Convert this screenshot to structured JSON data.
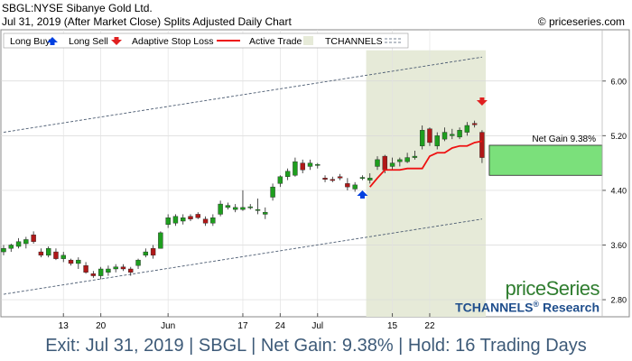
{
  "header": {
    "title": "SBGL:NYSE Sibanye Gold Ltd.",
    "subtitle": "Jul 31, 2019 (After Market Close)  Splits Adjusted Daily Chart",
    "copyright": "© priceseries.com"
  },
  "legend": {
    "long_buy": "Long Buy",
    "long_sell": "Long Sell",
    "stop_loss": "Adaptive Stop Loss",
    "active_trade": "Active Trade",
    "tchannels": "TCHANNELS"
  },
  "annotation": {
    "net_gain_label": "Net Gain 9.38%"
  },
  "brand": {
    "logo": "priceSeries",
    "research_name": "TCHANNELS",
    "research_mark": "®",
    "research_suffix": " Research"
  },
  "footer": {
    "summary": "Exit: Jul 31, 2019 | SBGL | Net Gain: 9.38% | Hold: 16 Trading Days"
  },
  "colors": {
    "up": "#1e9e1e",
    "down": "#b01818",
    "stop": "#ee1111",
    "trade_bg": "#e6ead8",
    "gain_fill": "#7be07b",
    "buy": "#0040e0",
    "sell": "#e02020",
    "channel": "#4a5a70"
  },
  "chart_data": {
    "type": "candlestick",
    "y_ticks": [
      "6.00",
      "5.20",
      "4.40",
      "3.60",
      "2.80"
    ],
    "y_tick_values": [
      6.0,
      5.2,
      4.4,
      3.6,
      2.8
    ],
    "ylim": [
      2.55,
      6.75
    ],
    "x_ticks": [
      {
        "label": "13",
        "index": 8
      },
      {
        "label": "20",
        "index": 13
      },
      {
        "label": "Jun",
        "index": 22
      },
      {
        "label": "17",
        "index": 32
      },
      {
        "label": "24",
        "index": 37
      },
      {
        "label": "Jul",
        "index": 42
      },
      {
        "label": "15",
        "index": 52
      },
      {
        "label": "22",
        "index": 57
      }
    ],
    "candles": [
      {
        "o": 3.5,
        "h": 3.6,
        "l": 3.45,
        "c": 3.55
      },
      {
        "o": 3.55,
        "h": 3.62,
        "l": 3.5,
        "c": 3.6
      },
      {
        "o": 3.58,
        "h": 3.7,
        "l": 3.55,
        "c": 3.65
      },
      {
        "o": 3.62,
        "h": 3.72,
        "l": 3.55,
        "c": 3.68
      },
      {
        "o": 3.75,
        "h": 3.8,
        "l": 3.62,
        "c": 3.65
      },
      {
        "o": 3.5,
        "h": 3.55,
        "l": 3.42,
        "c": 3.45
      },
      {
        "o": 3.45,
        "h": 3.58,
        "l": 3.42,
        "c": 3.55
      },
      {
        "o": 3.5,
        "h": 3.55,
        "l": 3.38,
        "c": 3.4
      },
      {
        "o": 3.4,
        "h": 3.5,
        "l": 3.35,
        "c": 3.45
      },
      {
        "o": 3.38,
        "h": 3.4,
        "l": 3.3,
        "c": 3.33
      },
      {
        "o": 3.33,
        "h": 3.42,
        "l": 3.25,
        "c": 3.38
      },
      {
        "o": 3.3,
        "h": 3.35,
        "l": 3.18,
        "c": 3.2
      },
      {
        "o": 3.18,
        "h": 3.22,
        "l": 3.12,
        "c": 3.15
      },
      {
        "o": 3.15,
        "h": 3.28,
        "l": 3.1,
        "c": 3.25
      },
      {
        "o": 3.2,
        "h": 3.3,
        "l": 3.15,
        "c": 3.25
      },
      {
        "o": 3.25,
        "h": 3.32,
        "l": 3.2,
        "c": 3.28
      },
      {
        "o": 3.28,
        "h": 3.32,
        "l": 3.22,
        "c": 3.25
      },
      {
        "o": 3.25,
        "h": 3.28,
        "l": 3.15,
        "c": 3.2
      },
      {
        "o": 3.3,
        "h": 3.4,
        "l": 3.25,
        "c": 3.38
      },
      {
        "o": 3.45,
        "h": 3.55,
        "l": 3.42,
        "c": 3.5
      },
      {
        "o": 3.55,
        "h": 3.6,
        "l": 3.4,
        "c": 3.45
      },
      {
        "o": 3.55,
        "h": 3.8,
        "l": 3.55,
        "c": 3.78
      },
      {
        "o": 3.9,
        "h": 4.05,
        "l": 3.85,
        "c": 4.0
      },
      {
        "o": 3.92,
        "h": 4.05,
        "l": 3.88,
        "c": 4.02
      },
      {
        "o": 3.95,
        "h": 4.05,
        "l": 3.9,
        "c": 4.0
      },
      {
        "o": 4.02,
        "h": 4.05,
        "l": 3.95,
        "c": 3.98
      },
      {
        "o": 4.05,
        "h": 4.08,
        "l": 3.98,
        "c": 4.0
      },
      {
        "o": 3.98,
        "h": 4.02,
        "l": 3.88,
        "c": 3.92
      },
      {
        "o": 3.92,
        "h": 4.05,
        "l": 3.88,
        "c": 4.0
      },
      {
        "o": 4.05,
        "h": 4.25,
        "l": 4.02,
        "c": 4.2
      },
      {
        "o": 4.15,
        "h": 4.22,
        "l": 4.12,
        "c": 4.18
      },
      {
        "o": 4.12,
        "h": 4.2,
        "l": 4.08,
        "c": 4.15
      },
      {
        "o": 4.12,
        "h": 4.4,
        "l": 4.1,
        "c": 4.15
      },
      {
        "o": 4.15,
        "h": 4.2,
        "l": 4.12,
        "c": 4.16
      },
      {
        "o": 4.12,
        "h": 4.28,
        "l": 4.05,
        "c": 4.12
      },
      {
        "o": 4.05,
        "h": 4.15,
        "l": 3.98,
        "c": 4.08
      },
      {
        "o": 4.3,
        "h": 4.5,
        "l": 4.25,
        "c": 4.45
      },
      {
        "o": 4.5,
        "h": 4.62,
        "l": 4.45,
        "c": 4.6
      },
      {
        "o": 4.6,
        "h": 4.72,
        "l": 4.55,
        "c": 4.68
      },
      {
        "o": 4.62,
        "h": 4.88,
        "l": 4.6,
        "c": 4.82
      },
      {
        "o": 4.8,
        "h": 4.85,
        "l": 4.65,
        "c": 4.7
      },
      {
        "o": 4.75,
        "h": 4.85,
        "l": 4.7,
        "c": 4.8
      },
      {
        "o": 4.78,
        "h": 4.8,
        "l": 4.72,
        "c": 4.78
      },
      {
        "o": 4.58,
        "h": 4.62,
        "l": 4.52,
        "c": 4.56
      },
      {
        "o": 4.56,
        "h": 4.6,
        "l": 4.52,
        "c": 4.55
      },
      {
        "o": 4.6,
        "h": 4.64,
        "l": 4.55,
        "c": 4.58
      },
      {
        "o": 4.5,
        "h": 4.58,
        "l": 4.4,
        "c": 4.45
      },
      {
        "o": 4.42,
        "h": 4.52,
        "l": 4.38,
        "c": 4.48
      },
      {
        "o": 4.58,
        "h": 4.62,
        "l": 4.55,
        "c": 4.59
      },
      {
        "o": 4.55,
        "h": 4.65,
        "l": 4.5,
        "c": 4.58
      },
      {
        "o": 4.75,
        "h": 4.9,
        "l": 4.7,
        "c": 4.85
      },
      {
        "o": 4.9,
        "h": 4.92,
        "l": 4.65,
        "c": 4.7
      },
      {
        "o": 4.75,
        "h": 4.88,
        "l": 4.7,
        "c": 4.8
      },
      {
        "o": 4.82,
        "h": 4.88,
        "l": 4.75,
        "c": 4.85
      },
      {
        "o": 4.82,
        "h": 4.95,
        "l": 4.8,
        "c": 4.88
      },
      {
        "o": 4.88,
        "h": 4.98,
        "l": 4.85,
        "c": 4.9
      },
      {
        "o": 5.05,
        "h": 5.35,
        "l": 5.0,
        "c": 5.28
      },
      {
        "o": 5.3,
        "h": 5.32,
        "l": 5.05,
        "c": 5.1
      },
      {
        "o": 5.05,
        "h": 5.25,
        "l": 5.0,
        "c": 5.2
      },
      {
        "o": 5.15,
        "h": 5.32,
        "l": 5.12,
        "c": 5.25
      },
      {
        "o": 5.2,
        "h": 5.3,
        "l": 5.15,
        "c": 5.22
      },
      {
        "o": 5.18,
        "h": 5.32,
        "l": 5.15,
        "c": 5.28
      },
      {
        "o": 5.25,
        "h": 5.4,
        "l": 5.2,
        "c": 5.35
      },
      {
        "o": 5.38,
        "h": 5.42,
        "l": 5.32,
        "c": 5.36
      },
      {
        "o": 5.25,
        "h": 5.28,
        "l": 4.8,
        "c": 4.88
      }
    ],
    "stop_loss": [
      {
        "i": 49,
        "v": 4.45
      },
      {
        "i": 50,
        "v": 4.58
      },
      {
        "i": 51,
        "v": 4.7
      },
      {
        "i": 52,
        "v": 4.7
      },
      {
        "i": 53,
        "v": 4.7
      },
      {
        "i": 54,
        "v": 4.72
      },
      {
        "i": 55,
        "v": 4.72
      },
      {
        "i": 56,
        "v": 4.72
      },
      {
        "i": 57,
        "v": 4.9
      },
      {
        "i": 58,
        "v": 4.95
      },
      {
        "i": 59,
        "v": 4.95
      },
      {
        "i": 60,
        "v": 5.02
      },
      {
        "i": 61,
        "v": 5.05
      },
      {
        "i": 62,
        "v": 5.05
      },
      {
        "i": 63,
        "v": 5.1
      },
      {
        "i": 64,
        "v": 5.12
      }
    ],
    "active_trade": {
      "start": 48.5,
      "end": 64.5
    },
    "buy_signal": {
      "i": 48,
      "v": 4.32
    },
    "sell_signal": {
      "i": 64,
      "v": 5.72
    },
    "net_gain": {
      "entry": 4.62,
      "exit": 5.06
    },
    "channel_upper": [
      {
        "i": 0,
        "v": 5.25
      },
      {
        "i": 64,
        "v": 6.35
      }
    ],
    "channel_lower": [
      {
        "i": 0,
        "v": 2.88
      },
      {
        "i": 64,
        "v": 3.98
      }
    ]
  }
}
